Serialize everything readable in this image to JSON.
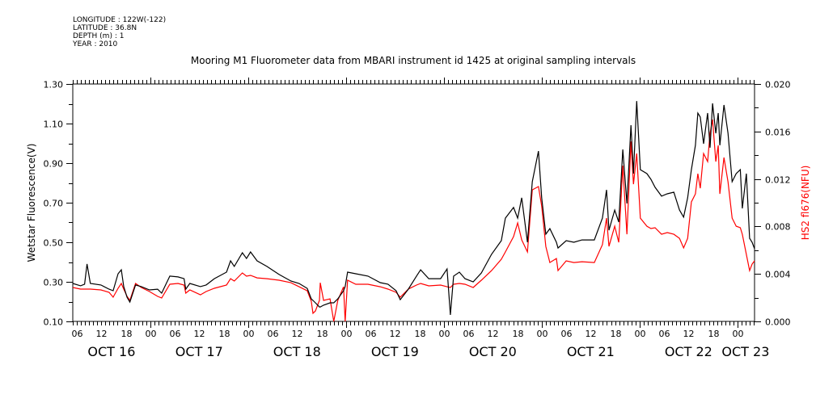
{
  "info": {
    "longitude": "LONGITUDE : 122W(-122)",
    "latitude": "LATITUDE : 36.8N",
    "depth": "DEPTH (m) : 1",
    "year": "YEAR : 2010"
  },
  "chart_data": {
    "type": "line",
    "title": "Mooring M1 Fluorometer data from MBARI instrument id 1425 at original sampling intervals",
    "xlabel": "",
    "ylabel": "Wetstar Fluorescence(V)",
    "y2label": "HS2 fl676(NFU)",
    "x_units": "hours since OCT 16 00:00",
    "xlim": [
      5,
      172.2
    ],
    "ylim": [
      0.1,
      1.3
    ],
    "y2lim": [
      0.0,
      0.02
    ],
    "yticks": [
      "0.10",
      "0.30",
      "0.50",
      "0.70",
      "0.90",
      "1.10",
      "1.30"
    ],
    "y2ticks": [
      "0.000",
      "0.004",
      "0.008",
      "0.012",
      "0.016",
      "0.020"
    ],
    "hour_tick_labels": [
      "00",
      "06",
      "12",
      "18"
    ],
    "day_labels": [
      {
        "label": "OCT 16",
        "at": 14.5
      },
      {
        "label": "OCT 17",
        "at": 36
      },
      {
        "label": "OCT 18",
        "at": 60
      },
      {
        "label": "OCT 19",
        "at": 84
      },
      {
        "label": "OCT 20",
        "at": 108
      },
      {
        "label": "OCT 21",
        "at": 132
      },
      {
        "label": "OCT 22",
        "at": 156
      },
      {
        "label": "OCT 23",
        "at": 170
      }
    ],
    "colors": {
      "wetstar": "#000000",
      "hs2": "#ff0000"
    },
    "t": [
      5.0,
      6.9,
      7.9,
      8.5,
      9.3,
      11.9,
      13.9,
      14.9,
      16.1,
      16.9,
      17.5,
      18.3,
      19.0,
      20.4,
      21.8,
      23.8,
      25.8,
      26.8,
      28.8,
      30.8,
      32.3,
      32.7,
      33.7,
      36.3,
      37.7,
      39.7,
      42.7,
      43.7,
      44.6,
      46.6,
      47.6,
      48.6,
      50.2,
      52.6,
      55.6,
      58.5,
      60.5,
      62.5,
      63.5,
      63.9,
      64.5,
      65.5,
      65.7,
      66.5,
      68.1,
      69.0,
      70.0,
      71.4,
      71.8,
      72.4,
      74.4,
      77.4,
      80.4,
      82.3,
      84.3,
      85.3,
      87.3,
      89.3,
      90.3,
      92.3,
      95.2,
      96.8,
      97.6,
      98.4,
      99.8,
      101.2,
      103.2,
      105.2,
      107.7,
      110.1,
      111.1,
      113.1,
      114.1,
      115.1,
      116.5,
      117.7,
      119.2,
      120.0,
      121.0,
      122.0,
      123.6,
      124.0,
      126.0,
      127.9,
      129.9,
      132.9,
      134.9,
      135.9,
      136.5,
      137.9,
      138.9,
      139.9,
      140.9,
      141.9,
      142.5,
      143.3,
      144.2,
      145.8,
      146.8,
      147.8,
      149.4,
      150.8,
      152.4,
      153.8,
      154.8,
      155.8,
      156.7,
      157.7,
      158.3,
      158.9,
      159.7,
      160.7,
      161.3,
      161.9,
      162.7,
      163.3,
      163.7,
      164.7,
      165.7,
      166.7,
      167.7,
      168.7,
      169.2,
      170.2,
      171.0,
      171.6,
      172.2
    ],
    "series": [
      {
        "name": "Wetstar Fluorescence(V)",
        "axis": "left",
        "values": [
          0.292,
          0.28,
          0.288,
          0.39,
          0.292,
          0.284,
          0.263,
          0.255,
          0.341,
          0.361,
          0.276,
          0.222,
          0.198,
          0.284,
          0.276,
          0.259,
          0.263,
          0.243,
          0.329,
          0.325,
          0.316,
          0.263,
          0.292,
          0.276,
          0.284,
          0.316,
          0.349,
          0.406,
          0.378,
          0.447,
          0.418,
          0.451,
          0.406,
          0.378,
          0.337,
          0.304,
          0.292,
          0.267,
          0.214,
          0.206,
          0.194,
          0.173,
          0.173,
          0.182,
          0.194,
          0.194,
          0.214,
          0.255,
          0.276,
          0.349,
          0.341,
          0.329,
          0.296,
          0.288,
          0.255,
          0.21,
          0.263,
          0.329,
          0.361,
          0.316,
          0.316,
          0.365,
          0.133,
          0.329,
          0.349,
          0.316,
          0.3,
          0.345,
          0.439,
          0.508,
          0.622,
          0.676,
          0.622,
          0.725,
          0.5,
          0.806,
          0.961,
          0.725,
          0.541,
          0.569,
          0.5,
          0.471,
          0.508,
          0.5,
          0.512,
          0.512,
          0.622,
          0.765,
          0.561,
          0.663,
          0.602,
          0.969,
          0.696,
          1.092,
          0.847,
          1.214,
          0.867,
          0.847,
          0.818,
          0.778,
          0.733,
          0.745,
          0.753,
          0.663,
          0.627,
          0.725,
          0.867,
          0.99,
          1.153,
          1.133,
          0.998,
          1.153,
          0.978,
          1.202,
          1.051,
          1.153,
          0.99,
          1.194,
          1.051,
          0.806,
          0.847,
          0.867,
          0.671,
          0.847,
          0.52,
          0.5,
          0.467
        ]
      },
      {
        "name": "HS2 fl676(NFU)",
        "axis": "right",
        "values": [
          0.00286,
          0.00272,
          0.00272,
          0.00272,
          0.00272,
          0.00265,
          0.00245,
          0.00204,
          0.00279,
          0.0032,
          0.00272,
          0.00211,
          0.00177,
          0.0032,
          0.00286,
          0.00252,
          0.00211,
          0.00197,
          0.00313,
          0.0032,
          0.00306,
          0.00238,
          0.00265,
          0.00224,
          0.00252,
          0.00279,
          0.00306,
          0.0036,
          0.0034,
          0.00408,
          0.00381,
          0.00388,
          0.00367,
          0.0036,
          0.00347,
          0.00326,
          0.00292,
          0.00258,
          0.0017,
          0.00068,
          0.00088,
          0.00177,
          0.00326,
          0.00177,
          0.0019,
          0.0,
          0.00177,
          0.00292,
          0.0,
          0.00347,
          0.00313,
          0.00313,
          0.00292,
          0.00272,
          0.00245,
          0.00204,
          0.00272,
          0.00306,
          0.0032,
          0.00299,
          0.00306,
          0.00292,
          0.00286,
          0.00313,
          0.0032,
          0.00313,
          0.00286,
          0.00347,
          0.00428,
          0.00524,
          0.00585,
          0.00714,
          0.0083,
          0.00687,
          0.00585,
          0.01108,
          0.01136,
          0.00972,
          0.00632,
          0.00496,
          0.0053,
          0.00428,
          0.0051,
          0.00496,
          0.00503,
          0.00496,
          0.00646,
          0.0087,
          0.00632,
          0.00802,
          0.00666,
          0.01312,
          0.00734,
          0.01516,
          0.01156,
          0.01414,
          0.0087,
          0.00802,
          0.00782,
          0.00789,
          0.00734,
          0.00748,
          0.00734,
          0.007,
          0.00619,
          0.007,
          0.01006,
          0.01074,
          0.01244,
          0.01122,
          0.01414,
          0.01346,
          0.01584,
          0.017,
          0.01346,
          0.01482,
          0.01074,
          0.0138,
          0.01176,
          0.0087,
          0.00802,
          0.00789,
          0.00734,
          0.00564,
          0.00428,
          0.00483,
          0.0051
        ]
      }
    ]
  }
}
